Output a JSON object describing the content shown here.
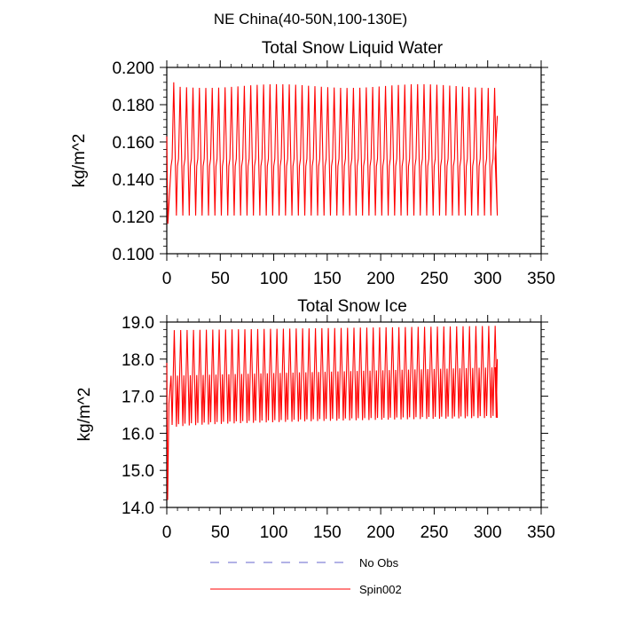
{
  "figure": {
    "suptitle": "NE China(40-50N,100-130E)"
  },
  "chart_data": [
    {
      "type": "line",
      "title": "Total Snow Liquid Water",
      "xlabel": "",
      "ylabel": "kg/m^2",
      "xlim": [
        0,
        350
      ],
      "ylim": [
        0.1,
        0.2
      ],
      "xticks": [
        0,
        50,
        100,
        150,
        200,
        250,
        300,
        350
      ],
      "xtick_labels": [
        "0",
        "50",
        "100",
        "150",
        "200",
        "250",
        "300",
        "350"
      ],
      "yticks": [
        0.1,
        0.12,
        0.14,
        0.16,
        0.18,
        0.2
      ],
      "ytick_labels": [
        "0.100",
        "0.120",
        "0.140",
        "0.160",
        "0.180",
        "0.200"
      ],
      "grid": false,
      "series": [
        {
          "name": "Spin002",
          "color": "#ff0000",
          "dash": "solid",
          "period": 6,
          "x_start": 0,
          "x_end": 309,
          "start_value": 0.163,
          "low_value": 0.116,
          "peak_first": 0.192,
          "peak_typical": 0.19,
          "trough_typical": 0.121,
          "mid_pair": [
            0.147,
            0.151
          ],
          "end_value": 0.174
        }
      ]
    },
    {
      "type": "line",
      "title": "Total Snow Ice",
      "xlabel": "",
      "ylabel": "kg/m^2",
      "xlim": [
        0,
        350
      ],
      "ylim": [
        14.0,
        19.0
      ],
      "xticks": [
        0,
        50,
        100,
        150,
        200,
        250,
        300,
        350
      ],
      "xtick_labels": [
        "0",
        "50",
        "100",
        "150",
        "200",
        "250",
        "300",
        "350"
      ],
      "yticks": [
        14,
        15,
        16,
        17,
        18,
        19
      ],
      "ytick_labels": [
        "14.0",
        "15.0",
        "16.0",
        "17.0",
        "18.0",
        "19.0"
      ],
      "grid": false,
      "series": [
        {
          "name": "Spin002",
          "color": "#ff0000",
          "dash": "solid",
          "period": 6,
          "x_start": 0,
          "x_end": 309,
          "start_value": 17.9,
          "low_value": 14.2,
          "peak_start": 18.78,
          "peak_end": 18.9,
          "trough_start": 16.15,
          "trough_end": 16.42,
          "mid_start": 17.55,
          "mid_end": 17.78,
          "end_value": 18.0
        }
      ]
    }
  ],
  "legend": {
    "placement": "bottom-center",
    "entries": [
      {
        "label": "No Obs",
        "color": "#6666cc",
        "dash": "dashed"
      },
      {
        "label": "Spin002",
        "color": "#ff0000",
        "dash": "solid"
      }
    ]
  }
}
